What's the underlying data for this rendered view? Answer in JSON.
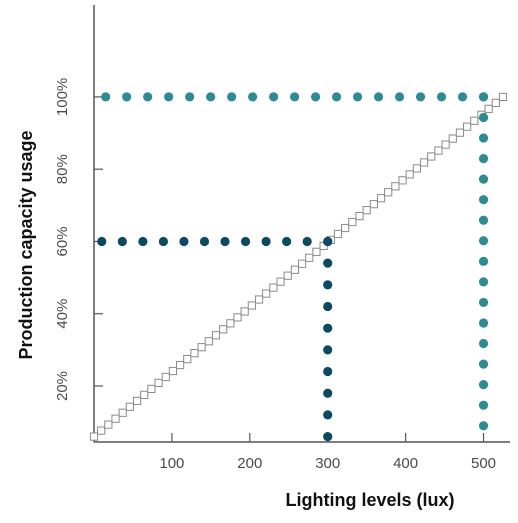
{
  "chart_data": {
    "type": "line",
    "xlabel": "Lighting levels (lux)",
    "ylabel": "Production capacity usage",
    "x_ticks": [
      100,
      200,
      300,
      400,
      500
    ],
    "y_ticks": [
      20,
      40,
      60,
      80,
      100
    ],
    "y_tick_suffix": "%",
    "xlim": [
      0,
      525
    ],
    "ylim": [
      4.5,
      108
    ],
    "grid": false,
    "legend": "none",
    "series": [
      {
        "style": "squares-line",
        "color": "#8a8a8a",
        "x": [
          0,
          525
        ],
        "y": [
          6,
          100
        ]
      },
      {
        "style": "dotted-guide",
        "color": "#0b4a60",
        "x": [
          300,
          300,
          10
        ],
        "y": [
          6,
          60,
          60
        ]
      },
      {
        "style": "dotted-guide",
        "color": "#2e8a93",
        "x": [
          500,
          500,
          15
        ],
        "y": [
          9,
          100,
          100
        ]
      }
    ]
  }
}
